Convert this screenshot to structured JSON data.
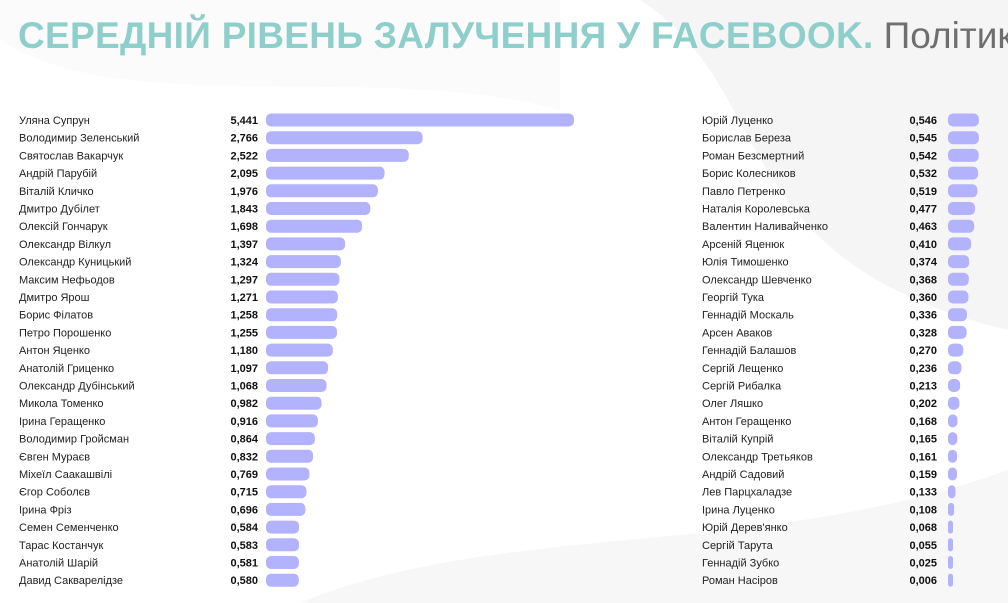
{
  "title": {
    "main": "СЕРЕДНІЙ РІВЕНЬ ЗАЛУЧЕННЯ У FACEBOOK.",
    "sub": "Політики"
  },
  "colors": {
    "title": "#8ecfcb",
    "subtitle": "#6f6f6f",
    "bar": "#b3b3fd",
    "text": "#222222"
  },
  "chart_data": [
    {
      "type": "bar",
      "orientation": "horizontal",
      "categories": [
        "Уляна Супрун",
        "Володимир Зеленський",
        "Святослав Вакарчук",
        "Андрій Парубій",
        "Віталій Кличко",
        "Дмитро Дубілет",
        "Олексій Гончарук",
        "Олександр Вілкул",
        "Олександр Куницький",
        "Максим Нефьодов",
        "Дмитро Ярош",
        "Борис Філатов",
        "Петро Порошенко",
        "Антон Яценко",
        "Анатолій Гриценко",
        "Олександр Дубінський",
        "Микола Томенко",
        "Ірина Геращенко",
        "Володимир Гройсман",
        "Євген Мураєв",
        "Міхеїл Саакашвілі",
        "Єгор Соболєв",
        "Ірина Фріз",
        "Семен Семенченко",
        "Тарас Костанчук",
        "Анатолій Шарій",
        "Давид Сакварелідзе"
      ],
      "values": [
        5.441,
        2.766,
        2.522,
        2.095,
        1.976,
        1.843,
        1.698,
        1.397,
        1.324,
        1.297,
        1.271,
        1.258,
        1.255,
        1.18,
        1.097,
        1.068,
        0.982,
        0.916,
        0.864,
        0.832,
        0.769,
        0.715,
        0.696,
        0.584,
        0.583,
        0.581,
        0.58
      ],
      "labels": [
        "5,441",
        "2,766",
        "2,522",
        "2,095",
        "1,976",
        "1,843",
        "1,698",
        "1,397",
        "1,324",
        "1,297",
        "1,271",
        "1,258",
        "1,255",
        "1,180",
        "1,097",
        "1,068",
        "0,982",
        "0,916",
        "0,864",
        "0,832",
        "0,769",
        "0,715",
        "0,696",
        "0,584",
        "0,583",
        "0,581",
        "0,580"
      ]
    },
    {
      "type": "bar",
      "orientation": "horizontal",
      "categories": [
        "Юрій Луценко",
        "Борислав Береза",
        "Роман Безсмертний",
        "Борис Колесников",
        "Павло Петренко",
        "Наталія Королевська",
        "Валентин Наливайченко",
        "Арсеній Яценюк",
        "Юлія Тимошенко",
        "Олександр Шевченко",
        "Георгій Тука",
        "Геннадій Москаль",
        "Арсен Аваков",
        "Геннадій Балашов",
        "Сергій Лещенко",
        "Сергій Рибалка",
        "Олег Ляшко",
        "Антон Геращенко",
        "Віталій Купрій",
        "Олександр Третьяков",
        "Андрій Садовий",
        "Лев Парцхаладзе",
        "Ірина Луценко",
        "Юрій Дерев'янко",
        "Сергій Тарута",
        "Геннадій Зубко",
        "Роман Насіров"
      ],
      "values": [
        0.546,
        0.545,
        0.542,
        0.532,
        0.519,
        0.477,
        0.463,
        0.41,
        0.374,
        0.368,
        0.36,
        0.336,
        0.328,
        0.27,
        0.236,
        0.213,
        0.202,
        0.168,
        0.165,
        0.161,
        0.159,
        0.133,
        0.108,
        0.068,
        0.055,
        0.025,
        0.006
      ],
      "labels": [
        "0,546",
        "0,545",
        "0,542",
        "0,532",
        "0,519",
        "0,477",
        "0,463",
        "0,410",
        "0,374",
        "0,368",
        "0,360",
        "0,336",
        "0,328",
        "0,270",
        "0,236",
        "0,213",
        "0,202",
        "0,168",
        "0,165",
        "0,161",
        "0,159",
        "0,133",
        "0,108",
        "0,068",
        "0,055",
        "0,025",
        "0,006"
      ]
    }
  ]
}
